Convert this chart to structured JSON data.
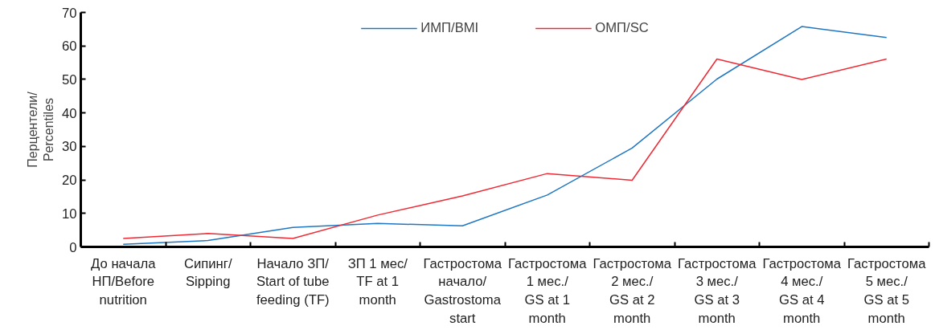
{
  "chart_data": {
    "type": "line",
    "ylabel": "Перцентели/\nPercentiles",
    "categories": [
      "До начала\nНП/Before\nnutrition",
      "Сипинг/\nSipping",
      "Начало ЗП/\nStart of tube\nfeeding (TF)",
      "ЗП 1 мес/\nTF at 1\nmonth",
      "Гастростома\nначало/\nGastrostoma\nstart",
      "Гастростома\n1 мес./\nGS at 1\nmonth",
      "Гастростома\n2 мес./\nGS at 2\nmonth",
      "Гастростома\n3 мес./\nGS at 3\nmonth",
      "Гастростома\n4 мес./\nGS at 4\nmonth",
      "Гастростома\n5 мес./\nGS at 5\nmonth"
    ],
    "series": [
      {
        "name": "ИМП/BMI",
        "color": "#1f77c4",
        "values": [
          0.8,
          1.9,
          5.8,
          7.0,
          6.3,
          15.5,
          29.5,
          50.1,
          65.8,
          62.5
        ]
      },
      {
        "name": "ОМП/SC",
        "color": "#ee2a35",
        "values": [
          2.5,
          4.0,
          2.5,
          9.5,
          15.2,
          21.9,
          19.9,
          56.1,
          50.0,
          56.1
        ]
      }
    ],
    "ylim": [
      0,
      70
    ],
    "yticks": [
      0,
      10,
      20,
      30,
      40,
      50,
      60,
      70
    ],
    "grid": false,
    "legend": "top",
    "marker": "none",
    "line_style": "solid"
  }
}
